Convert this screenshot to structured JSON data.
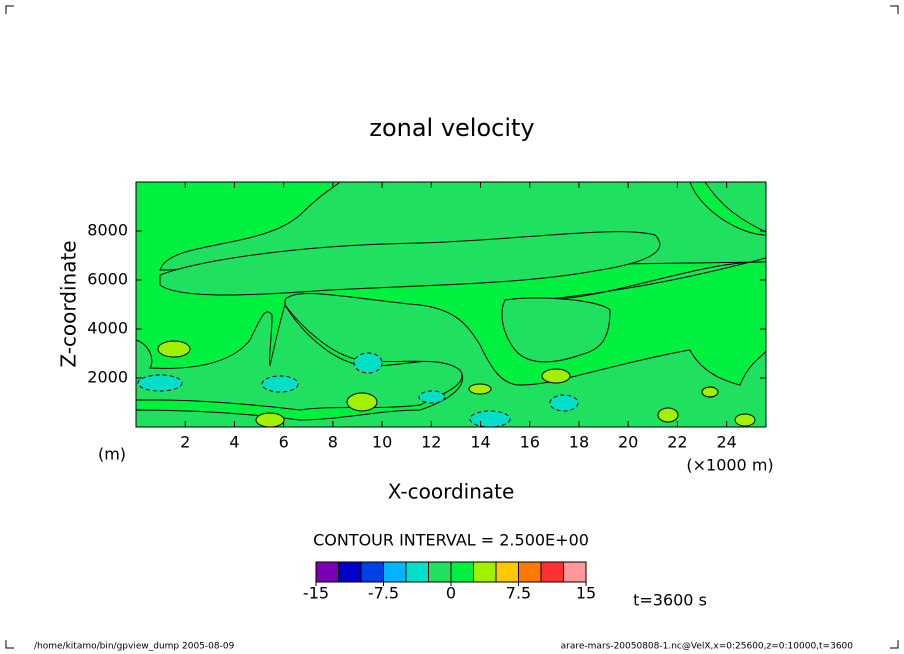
{
  "chart_data": {
    "type": "contour",
    "title": "zonal velocity",
    "xlabel": "X-coordinate",
    "ylabel": "Z-coordinate",
    "xunit": "(×1000 m)",
    "yunit": "(m)",
    "xlim": [
      0,
      25.6
    ],
    "xticks": [
      2,
      4,
      6,
      8,
      10,
      12,
      14,
      16,
      18,
      20,
      22,
      24
    ],
    "ylim": [
      0,
      10000
    ],
    "yticks": [
      2000,
      4000,
      6000,
      8000
    ],
    "contour_note": "CONTOUR INTERVAL = 2.500E+00",
    "time_label": "t=3600 s",
    "colorbar": {
      "levels": [
        -15,
        -12.5,
        -10,
        -7.5,
        -5,
        -2.5,
        0,
        2.5,
        5,
        7.5,
        10,
        12.5,
        15
      ],
      "colors": [
        "#7a00b4",
        "#0000c8",
        "#0040e8",
        "#00b4ff",
        "#00e0c8",
        "#20e060",
        "#00f040",
        "#a0f000",
        "#ffc800",
        "#ff7800",
        "#ff3030",
        "#ff9898"
      ],
      "ticks": [
        -15,
        -7.5,
        0,
        7.5,
        15
      ]
    },
    "footer_left": "/home/kitamo/bin/gpview_dump  2005-08-09",
    "footer_right": "arare-mars-20050808-1.nc@VelX,x=0:25600,z=0:10000,t=3600"
  }
}
